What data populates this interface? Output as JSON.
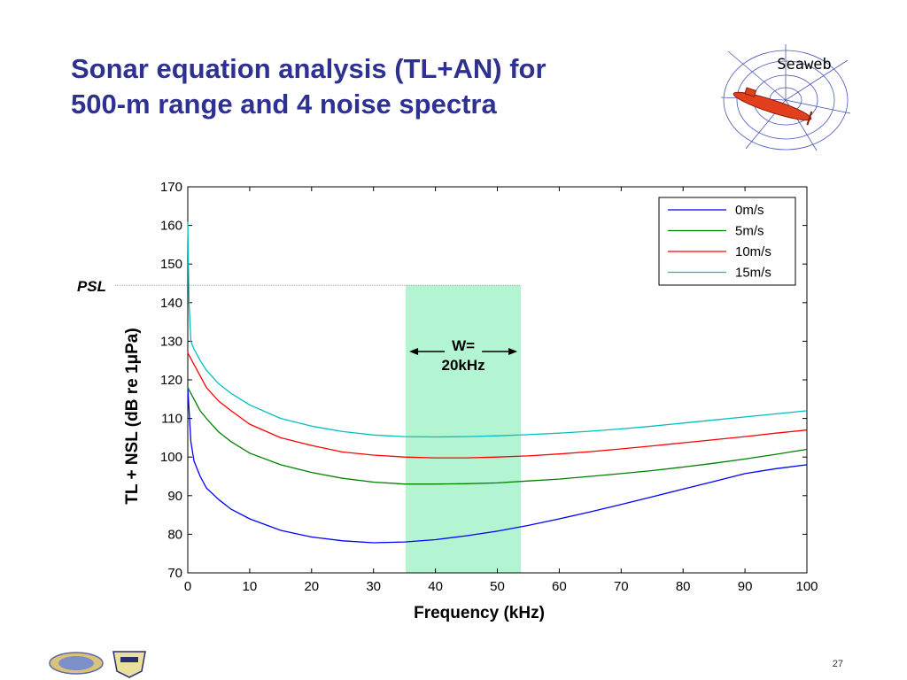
{
  "slide": {
    "title_line1": "Sonar equation analysis (TL+AN) for",
    "title_line2": "500-m range and 4 noise spectra",
    "logo_text": "Seaweb",
    "page_number": "27",
    "title_color": "#2e3192"
  },
  "chart_data": {
    "type": "line",
    "title": "",
    "xlabel": "Frequency (kHz)",
    "ylabel": "TL + NSL (dB re 1μPa)",
    "xlim": [
      0,
      100
    ],
    "ylim": [
      70,
      170
    ],
    "xticks": [
      0,
      10,
      20,
      30,
      40,
      50,
      60,
      70,
      80,
      90,
      100
    ],
    "yticks": [
      70,
      80,
      90,
      100,
      110,
      120,
      130,
      140,
      150,
      160,
      170
    ],
    "grid": false,
    "legend_position": "top-right",
    "series": [
      {
        "name": "0m/s",
        "color": "#0000ff",
        "x": [
          0,
          0.5,
          1,
          2,
          3,
          5,
          7,
          10,
          15,
          20,
          25,
          30,
          35,
          40,
          45,
          50,
          55,
          60,
          65,
          70,
          75,
          80,
          85,
          90,
          95,
          100
        ],
        "y": [
          118,
          104,
          99,
          95,
          92,
          89,
          86.5,
          84,
          81,
          79.3,
          78.3,
          77.8,
          78,
          78.6,
          79.6,
          80.8,
          82.3,
          84,
          85.8,
          87.7,
          89.7,
          91.7,
          93.7,
          95.7,
          97,
          98
        ]
      },
      {
        "name": "5m/s",
        "color": "#008000",
        "x": [
          0,
          1,
          2,
          3,
          5,
          7,
          10,
          15,
          20,
          25,
          30,
          35,
          40,
          45,
          50,
          55,
          60,
          65,
          70,
          75,
          80,
          85,
          90,
          95,
          100
        ],
        "y": [
          118,
          115,
          112,
          110,
          106.5,
          104,
          101,
          98,
          96,
          94.5,
          93.5,
          93,
          93,
          93.1,
          93.3,
          93.8,
          94.3,
          95,
          95.7,
          96.5,
          97.4,
          98.4,
          99.5,
          100.7,
          102
        ]
      },
      {
        "name": "10m/s",
        "color": "#ff0000",
        "x": [
          0,
          1,
          2,
          3,
          5,
          7,
          10,
          15,
          20,
          25,
          30,
          35,
          40,
          45,
          50,
          55,
          60,
          65,
          70,
          75,
          80,
          85,
          90,
          95,
          100
        ],
        "y": [
          127,
          124,
          121,
          118,
          114.5,
          112,
          108.5,
          105,
          103,
          101.3,
          100.5,
          100,
          99.8,
          99.8,
          100,
          100.3,
          100.8,
          101.4,
          102.1,
          102.9,
          103.7,
          104.5,
          105.3,
          106.2,
          107
        ]
      },
      {
        "name": "15m/s",
        "color": "#00c0c0",
        "x": [
          0,
          0.2,
          0.5,
          1,
          2,
          3,
          5,
          7,
          10,
          15,
          20,
          25,
          30,
          35,
          40,
          45,
          50,
          55,
          60,
          65,
          70,
          75,
          80,
          85,
          90,
          95,
          100
        ],
        "y": [
          161,
          140,
          130,
          128,
          125,
          122.5,
          119,
          116.5,
          113.5,
          110,
          108,
          106.6,
          105.7,
          105.3,
          105.2,
          105.3,
          105.5,
          105.8,
          106.2,
          106.7,
          107.3,
          108,
          108.8,
          109.6,
          110.4,
          111.2,
          112
        ]
      }
    ],
    "annotations": {
      "psl_label": "PSL",
      "psl_value": 144.5,
      "band_start": 35.2,
      "band_end": 53.8,
      "band_color": "#b3f5d3",
      "band_label_line1": "W=",
      "band_label_line2": "20kHz"
    }
  }
}
